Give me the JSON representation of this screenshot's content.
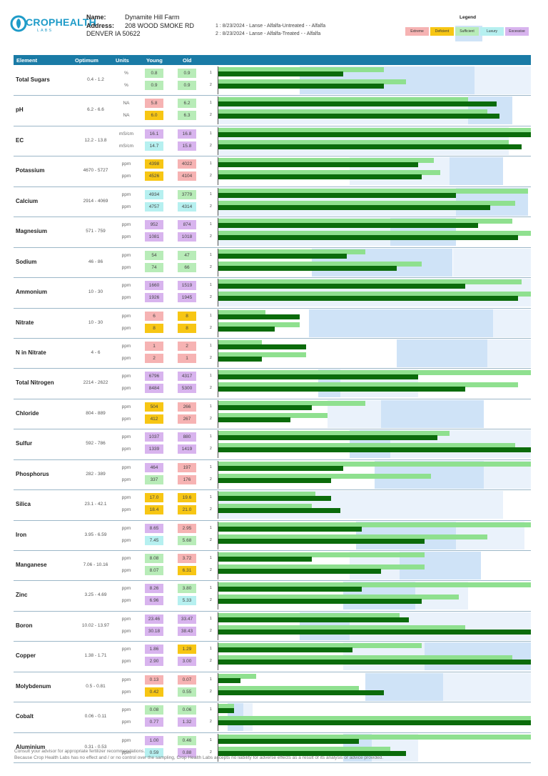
{
  "header": {
    "logo_text": "CROPHEALTH",
    "logo_sub": "LABS",
    "name_label": "Name:",
    "name_value": "Dynamite Hill Farm",
    "address_label": "Address:",
    "address_value": "208 WOOD SMOKE RD",
    "city_value": "DENVER IA 50622",
    "sample_1": "1 : 8/23/2024 - Lanse - Alfalfa-Untreated - - Alfalfa",
    "sample_2": "2 : 8/23/2024 - Lanse - Alfalfa-Treated - - Alfalfa"
  },
  "legend": {
    "title": "Legend",
    "items": [
      {
        "label": "Extreme",
        "color": "#f6b3b3"
      },
      {
        "label": "Deficient",
        "color": "#f7c614"
      },
      {
        "label": "Sufficient",
        "color": "#b8ecb8"
      },
      {
        "label": "Luxury",
        "color": "#b6f0f0"
      },
      {
        "label": "Excessive",
        "color": "#d8b4ee"
      }
    ]
  },
  "colors": {
    "header_bg": "#1a7ba6",
    "Extreme": "#f6b3b3",
    "Deficient": "#f7c614",
    "Sufficient": "#b8ecb8",
    "Luxury": "#b6f0f0",
    "Excessive": "#d8b4ee",
    "bar_young": "#0b6b0b",
    "bar_old": "#8fe08f"
  },
  "table": {
    "columns": {
      "element": "Element",
      "optimum": "Optimum",
      "units": "Units",
      "young": "Young",
      "old": "Old"
    },
    "rows": [
      {
        "name": "Total Sugars",
        "optimum": "0.4 - 1.2",
        "units": [
          "%",
          "%"
        ],
        "young": [
          {
            "v": "0.8",
            "c": "Sufficient"
          },
          {
            "v": "0.9",
            "c": "Sufficient"
          }
        ],
        "old": [
          {
            "v": "0.9",
            "c": "Sufficient"
          },
          {
            "v": "0.9",
            "c": "Sufficient"
          }
        ],
        "bars": [
          [
            0.4,
            0.53
          ],
          [
            0.53,
            0.6
          ]
        ]
      },
      {
        "name": "pH",
        "optimum": "6.2 - 6.6",
        "units": [
          "NA",
          "NA"
        ],
        "young": [
          {
            "v": "5.8",
            "c": "Extreme"
          },
          {
            "v": "6.0",
            "c": "Deficient"
          }
        ],
        "old": [
          {
            "v": "6.2",
            "c": "Sufficient"
          },
          {
            "v": "6.3",
            "c": "Sufficient"
          }
        ],
        "bars": [
          [
            0.89,
            0.8
          ],
          [
            0.9,
            0.86
          ]
        ]
      },
      {
        "name": "EC",
        "optimum": "12.2 - 13.8",
        "units": [
          "mS/cm",
          "mS/cm"
        ],
        "young": [
          {
            "v": "16.1",
            "c": "Excessive"
          },
          {
            "v": "14.7",
            "c": "Luxury"
          }
        ],
        "old": [
          {
            "v": "16.8",
            "c": "Excessive"
          },
          {
            "v": "15.8",
            "c": "Excessive"
          }
        ],
        "bars": [
          [
            1.0,
            1.0
          ],
          [
            0.97,
            0.93
          ]
        ]
      },
      {
        "name": "Potassium",
        "optimum": "4670 - 5727",
        "units": [
          "ppm",
          "ppm"
        ],
        "young": [
          {
            "v": "4398",
            "c": "Deficient"
          },
          {
            "v": "4526",
            "c": "Deficient"
          }
        ],
        "old": [
          {
            "v": "4022",
            "c": "Extreme"
          },
          {
            "v": "4104",
            "c": "Extreme"
          }
        ],
        "bars": [
          [
            0.64,
            0.69
          ],
          [
            0.65,
            0.71
          ]
        ]
      },
      {
        "name": "Calcium",
        "optimum": "2914 - 4069",
        "units": [
          "ppm",
          "ppm"
        ],
        "young": [
          {
            "v": "4934",
            "c": "Luxury"
          },
          {
            "v": "4757",
            "c": "Luxury"
          }
        ],
        "old": [
          {
            "v": "3779",
            "c": "Sufficient"
          },
          {
            "v": "4314",
            "c": "Luxury"
          }
        ],
        "bars": [
          [
            0.76,
            0.99
          ],
          [
            0.87,
            0.95
          ]
        ]
      },
      {
        "name": "Magnesium",
        "optimum": "571 - 759",
        "units": [
          "ppm",
          "ppm"
        ],
        "young": [
          {
            "v": "952",
            "c": "Excessive"
          },
          {
            "v": "1081",
            "c": "Excessive"
          }
        ],
        "old": [
          {
            "v": "874",
            "c": "Excessive"
          },
          {
            "v": "1018",
            "c": "Excessive"
          }
        ],
        "bars": [
          [
            0.83,
            0.94
          ],
          [
            0.96,
            1.0
          ]
        ]
      },
      {
        "name": "Sodium",
        "optimum": "46 - 86",
        "units": [
          "ppm",
          "ppm"
        ],
        "young": [
          {
            "v": "54",
            "c": "Sufficient"
          },
          {
            "v": "74",
            "c": "Sufficient"
          }
        ],
        "old": [
          {
            "v": "47",
            "c": "Sufficient"
          },
          {
            "v": "66",
            "c": "Sufficient"
          }
        ],
        "bars": [
          [
            0.41,
            0.47
          ],
          [
            0.57,
            0.65
          ]
        ]
      },
      {
        "name": "Ammonium",
        "optimum": "10 - 30",
        "units": [
          "ppm",
          "ppm"
        ],
        "young": [
          {
            "v": "1660",
            "c": "Excessive"
          },
          {
            "v": "1926",
            "c": "Excessive"
          }
        ],
        "old": [
          {
            "v": "1519",
            "c": "Excessive"
          },
          {
            "v": "1945",
            "c": "Excessive"
          }
        ],
        "bars": [
          [
            0.79,
            0.97
          ],
          [
            0.96,
            1.0
          ]
        ]
      },
      {
        "name": "Nitrate",
        "optimum": "10 - 30",
        "units": [
          "ppm",
          "ppm"
        ],
        "young": [
          {
            "v": "6",
            "c": "Extreme"
          },
          {
            "v": "8",
            "c": "Deficient"
          }
        ],
        "old": [
          {
            "v": "8",
            "c": "Deficient"
          },
          {
            "v": "8",
            "c": "Deficient"
          }
        ],
        "bars": [
          [
            0.26,
            0.15
          ],
          [
            0.18,
            0.26
          ]
        ]
      },
      {
        "name": "N in Nitrate",
        "optimum": "4 - 6",
        "units": [
          "ppm",
          "ppm"
        ],
        "young": [
          {
            "v": "1",
            "c": "Extreme"
          },
          {
            "v": "2",
            "c": "Extreme"
          }
        ],
        "old": [
          {
            "v": "2",
            "c": "Extreme"
          },
          {
            "v": "1",
            "c": "Extreme"
          }
        ],
        "bars": [
          [
            0.28,
            0.14
          ],
          [
            0.14,
            0.28
          ]
        ]
      },
      {
        "name": "Total Nitrogen",
        "optimum": "2214 - 2622",
        "units": [
          "ppm",
          "ppm"
        ],
        "young": [
          {
            "v": "6796",
            "c": "Excessive"
          },
          {
            "v": "8484",
            "c": "Excessive"
          }
        ],
        "old": [
          {
            "v": "4317",
            "c": "Excessive"
          },
          {
            "v": "5300",
            "c": "Excessive"
          }
        ],
        "bars": [
          [
            0.64,
            1.0
          ],
          [
            0.79,
            0.96
          ]
        ]
      },
      {
        "name": "Chloride",
        "optimum": "804 - 889",
        "units": [
          "ppm",
          "ppm"
        ],
        "young": [
          {
            "v": "504",
            "c": "Deficient"
          },
          {
            "v": "412",
            "c": "Deficient"
          }
        ],
        "old": [
          {
            "v": "266",
            "c": "Extreme"
          },
          {
            "v": "267",
            "c": "Extreme"
          }
        ],
        "bars": [
          [
            0.3,
            0.47
          ],
          [
            0.23,
            0.35
          ]
        ]
      },
      {
        "name": "Sulfur",
        "optimum": "592 - 786",
        "units": [
          "ppm",
          "ppm"
        ],
        "young": [
          {
            "v": "1037",
            "c": "Excessive"
          },
          {
            "v": "1339",
            "c": "Excessive"
          }
        ],
        "old": [
          {
            "v": "880",
            "c": "Excessive"
          },
          {
            "v": "1419",
            "c": "Excessive"
          }
        ],
        "bars": [
          [
            0.7,
            0.74
          ],
          [
            1.0,
            0.95
          ]
        ]
      },
      {
        "name": "Phosphorus",
        "optimum": "282 - 389",
        "units": [
          "ppm",
          "ppm"
        ],
        "young": [
          {
            "v": "464",
            "c": "Excessive"
          },
          {
            "v": "337",
            "c": "Sufficient"
          }
        ],
        "old": [
          {
            "v": "197",
            "c": "Extreme"
          },
          {
            "v": "176",
            "c": "Extreme"
          }
        ],
        "bars": [
          [
            0.4,
            1.0
          ],
          [
            0.36,
            0.68
          ]
        ]
      },
      {
        "name": "Silica",
        "optimum": "23.1 - 42.1",
        "units": [
          "ppm",
          "ppm"
        ],
        "young": [
          {
            "v": "17.0",
            "c": "Deficient"
          },
          {
            "v": "18.4",
            "c": "Deficient"
          }
        ],
        "old": [
          {
            "v": "19.6",
            "c": "Deficient"
          },
          {
            "v": "21.0",
            "c": "Deficient"
          }
        ],
        "bars": [
          [
            0.36,
            0.31
          ],
          [
            0.39,
            0.3
          ]
        ]
      },
      {
        "name": "Iron",
        "optimum": "3.95 - 6.59",
        "units": [
          "ppm",
          "ppm"
        ],
        "young": [
          {
            "v": "8.65",
            "c": "Excessive"
          },
          {
            "v": "7.45",
            "c": "Luxury"
          }
        ],
        "old": [
          {
            "v": "2.95",
            "c": "Extreme"
          },
          {
            "v": "5.68",
            "c": "Sufficient"
          }
        ],
        "bars": [
          [
            0.46,
            1.0
          ],
          [
            0.66,
            0.86
          ]
        ]
      },
      {
        "name": "Manganese",
        "optimum": "7.06 - 10.16",
        "units": [
          "ppm",
          "ppm"
        ],
        "young": [
          {
            "v": "8.08",
            "c": "Sufficient"
          },
          {
            "v": "8.07",
            "c": "Sufficient"
          }
        ],
        "old": [
          {
            "v": "3.72",
            "c": "Extreme"
          },
          {
            "v": "6.31",
            "c": "Deficient"
          }
        ],
        "bars": [
          [
            0.3,
            0.66
          ],
          [
            0.52,
            0.66
          ]
        ]
      },
      {
        "name": "Zinc",
        "optimum": "3.25 - 4.69",
        "units": [
          "ppm",
          "ppm"
        ],
        "young": [
          {
            "v": "8.26",
            "c": "Excessive"
          },
          {
            "v": "6.96",
            "c": "Excessive"
          }
        ],
        "old": [
          {
            "v": "3.80",
            "c": "Sufficient"
          },
          {
            "v": "5.33",
            "c": "Luxury"
          }
        ],
        "bars": [
          [
            0.46,
            1.0
          ],
          [
            0.65,
            0.77
          ]
        ]
      },
      {
        "name": "Boron",
        "optimum": "10.02 - 13.97",
        "units": [
          "ppm",
          "ppm"
        ],
        "young": [
          {
            "v": "23.46",
            "c": "Excessive"
          },
          {
            "v": "30.18",
            "c": "Excessive"
          }
        ],
        "old": [
          {
            "v": "33.47",
            "c": "Excessive"
          },
          {
            "v": "38.43",
            "c": "Excessive"
          }
        ],
        "bars": [
          [
            0.61,
            0.58
          ],
          [
            1.0,
            0.79
          ]
        ]
      },
      {
        "name": "Copper",
        "optimum": "1.38 - 1.71",
        "units": [
          "ppm",
          "ppm"
        ],
        "young": [
          {
            "v": "1.86",
            "c": "Excessive"
          },
          {
            "v": "2.90",
            "c": "Excessive"
          }
        ],
        "old": [
          {
            "v": "1.29",
            "c": "Deficient"
          },
          {
            "v": "3.00",
            "c": "Excessive"
          }
        ],
        "bars": [
          [
            0.43,
            0.65
          ],
          [
            1.0,
            0.94
          ]
        ]
      },
      {
        "name": "Molybdenum",
        "optimum": "0.5 - 0.81",
        "units": [
          "ppm",
          "ppm"
        ],
        "young": [
          {
            "v": "0.13",
            "c": "Extreme"
          },
          {
            "v": "0.42",
            "c": "Deficient"
          }
        ],
        "old": [
          {
            "v": "0.07",
            "c": "Extreme"
          },
          {
            "v": "0.55",
            "c": "Sufficient"
          }
        ],
        "bars": [
          [
            0.07,
            0.12
          ],
          [
            0.53,
            0.45
          ]
        ]
      },
      {
        "name": "Cobalt",
        "optimum": "0.06 - 0.11",
        "units": [
          "ppm",
          "ppm"
        ],
        "young": [
          {
            "v": "0.08",
            "c": "Sufficient"
          },
          {
            "v": "0.77",
            "c": "Excessive"
          }
        ],
        "old": [
          {
            "v": "0.06",
            "c": "Sufficient"
          },
          {
            "v": "1.32",
            "c": "Excessive"
          }
        ],
        "bars": [
          [
            0.05,
            0.05
          ],
          [
            1.0,
            1.0
          ]
        ]
      },
      {
        "name": "Aluminium",
        "optimum": "0.31 - 0.53",
        "units": [
          "ppm",
          "ppm"
        ],
        "young": [
          {
            "v": "1.00",
            "c": "Excessive"
          },
          {
            "v": "0.59",
            "c": "Luxury"
          }
        ],
        "old": [
          {
            "v": "0.46",
            "c": "Sufficient"
          },
          {
            "v": "0.88",
            "c": "Excessive"
          }
        ],
        "bars": [
          [
            0.45,
            1.0
          ],
          [
            0.6,
            0.55
          ]
        ]
      }
    ]
  },
  "footer": {
    "line1": "Consult your advisor for appropriate fertilizer recommendations.",
    "line2": "Because Crop Health Labs has no effect and / or no control over the sampling, Crop Health Labs accepts no liability for adverse effects as a result of its analysis or advice provided."
  }
}
